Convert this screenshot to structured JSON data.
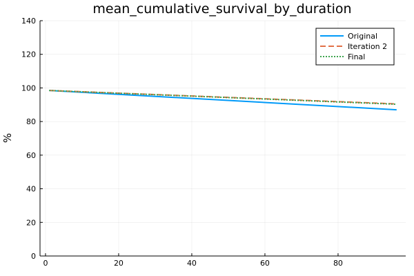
{
  "chart_data": {
    "type": "line",
    "title": "mean_cumulative_survival_by_duration",
    "xlabel": "",
    "ylabel": "%",
    "xlim": [
      -1.5,
      98.5
    ],
    "ylim": [
      0,
      140
    ],
    "xticks": [
      0,
      20,
      40,
      60,
      80
    ],
    "yticks": [
      0,
      20,
      40,
      60,
      80,
      100,
      120,
      140
    ],
    "grid": true,
    "legend_position": "top-right",
    "series": [
      {
        "name": "Original",
        "color": "#009af9",
        "dash": "solid",
        "x": [
          1,
          96
        ],
        "y": [
          98.5,
          87.0
        ]
      },
      {
        "name": "Iteration 2",
        "color": "#e26f46",
        "dash": "dashed",
        "x": [
          1,
          96
        ],
        "y": [
          98.5,
          90.5
        ]
      },
      {
        "name": "Final",
        "color": "#3da44d",
        "dash": "dotted",
        "x": [
          1,
          96
        ],
        "y": [
          98.5,
          90.3
        ]
      }
    ]
  }
}
